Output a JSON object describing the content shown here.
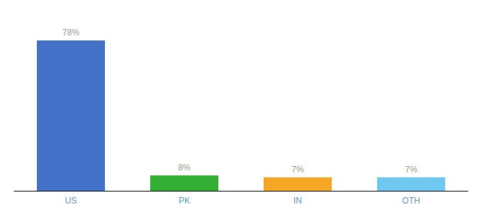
{
  "chart_data": {
    "type": "bar",
    "categories": [
      "US",
      "PK",
      "IN",
      "OTH"
    ],
    "values": [
      78,
      8,
      7,
      7
    ],
    "value_labels": [
      "78%",
      "8%",
      "7%",
      "7%"
    ],
    "colors": [
      "#4472c9",
      "#33b033",
      "#f5a623",
      "#6fc8f0"
    ],
    "ylim": [
      0,
      88
    ],
    "data_labels": true,
    "tick_labels": "x",
    "grid": false
  }
}
